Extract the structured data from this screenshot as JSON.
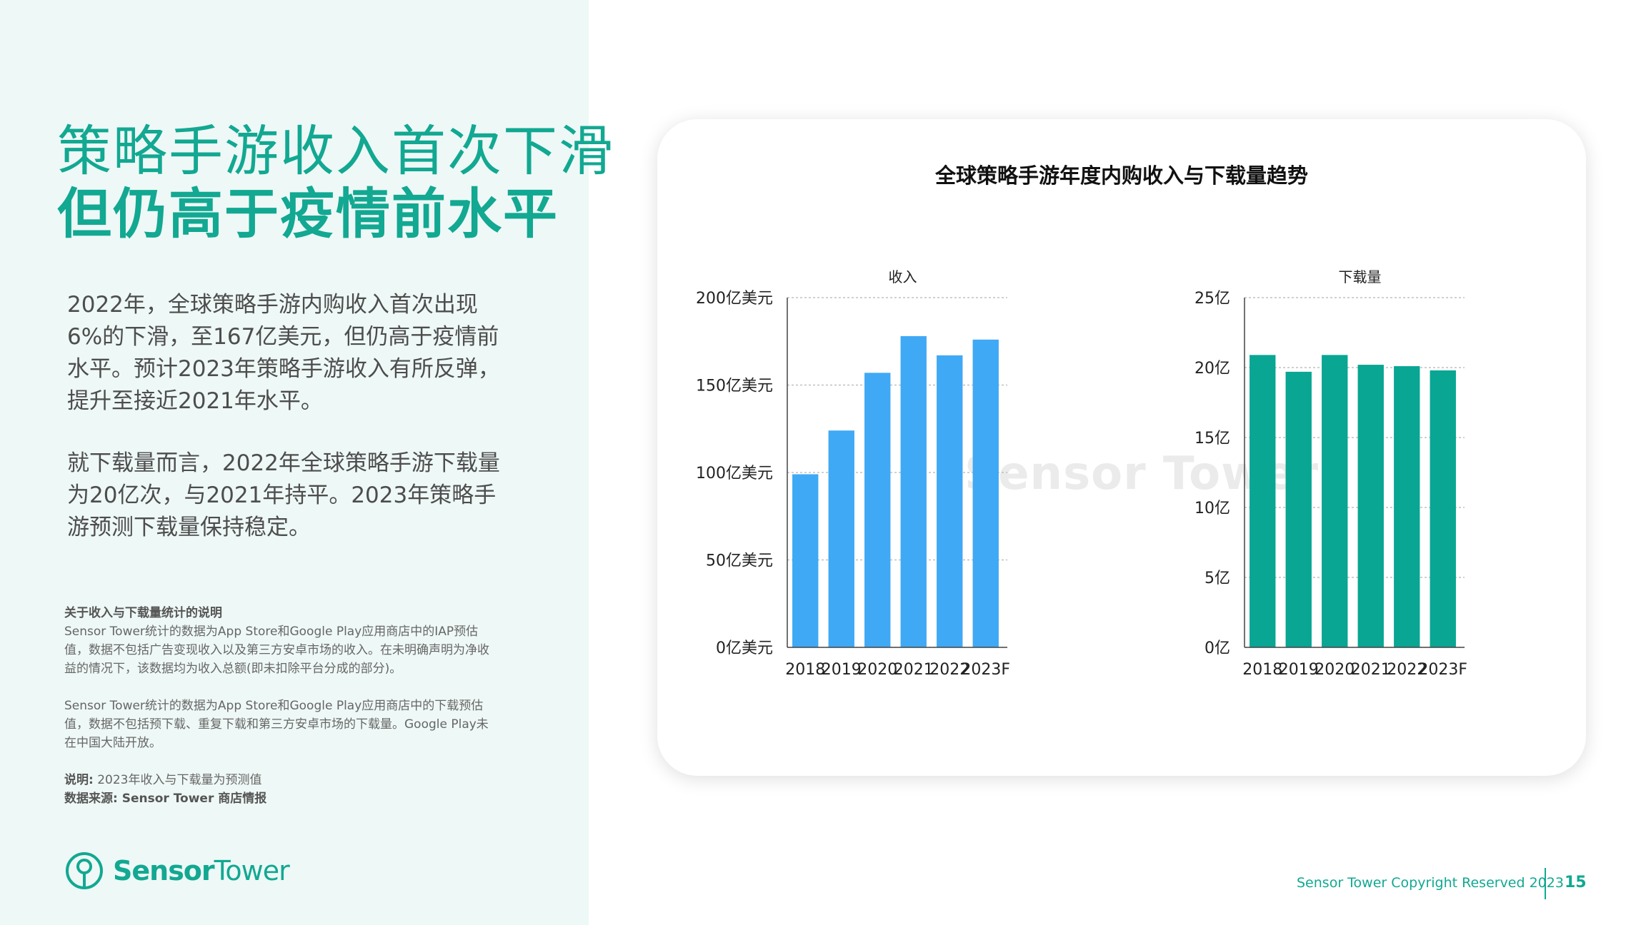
{
  "title": {
    "line1": "策略手游收入首次下滑",
    "line2": "但仍高于疫情前水平"
  },
  "body": {
    "para1": "2022年，全球策略手游内购收入首次出现6%的下滑，至167亿美元，但仍高于疫情前水平。预计2023年策略手游收入有所反弹，提升至接近2021年水平。",
    "para2": "就下载量而言，2022年全球策略手游下载量为20亿次，与2021年持平。2023年策略手游预测下载量保持稳定。"
  },
  "notes": {
    "heading": "关于收入与下载量统计的说明",
    "revenue_note": "Sensor Tower统计的数据为App Store和Google Play应用商店中的IAP预估值，数据不包括广告变现收入以及第三方安卓市场的收入。在未明确声明为净收益的情况下，该数据均为收入总额(即未扣除平台分成的部分)。",
    "download_note": "Sensor Tower统计的数据为App Store和Google Play应用商店中的下载预估值，数据不包括预下载、重复下载和第三方安卓市场的下载量。Google Play未在中国大陆开放。",
    "explain_label": "说明:",
    "explain_text": "2023年收入与下载量为预测值",
    "source": "数据来源: Sensor Tower 商店情报"
  },
  "logo": {
    "name_bold": "Sensor",
    "name_rest": "Tower",
    "icon": "sensor-tower-logo-icon"
  },
  "watermark": "Sensor Tower",
  "footer": {
    "copyright": "Sensor Tower Copyright Reserved 2023",
    "page": "15"
  },
  "chart_title": "全球策略手游年度内购收入与下载量趋势",
  "colors": {
    "accent": "#12a892",
    "revenue_bar": "#3fa9f5",
    "download_bar": "#08a693",
    "left_bg": "#eef8f6"
  },
  "chart_data": [
    {
      "type": "bar",
      "title": "收入",
      "categories": [
        "2018",
        "2019",
        "2020",
        "2021",
        "2022",
        "2023F"
      ],
      "values": [
        99,
        124,
        157,
        178,
        167,
        176
      ],
      "ylim": [
        0,
        200
      ],
      "yticks": [
        0,
        50,
        100,
        150,
        200
      ],
      "ytick_labels": [
        "0亿美元",
        "50亿美元",
        "100亿美元",
        "150亿美元",
        "200亿美元"
      ],
      "color": "#3fa9f5",
      "grid": true
    },
    {
      "type": "bar",
      "title": "下载量",
      "categories": [
        "2018",
        "2019",
        "2020",
        "2021",
        "2022",
        "2023F"
      ],
      "values": [
        20.9,
        19.7,
        20.9,
        20.2,
        20.1,
        19.8
      ],
      "ylim": [
        0,
        25
      ],
      "yticks": [
        0,
        5,
        10,
        15,
        20,
        25
      ],
      "ytick_labels": [
        "0亿",
        "5亿",
        "10亿",
        "15亿",
        "20亿",
        "25亿"
      ],
      "color": "#08a693",
      "grid": true
    }
  ]
}
